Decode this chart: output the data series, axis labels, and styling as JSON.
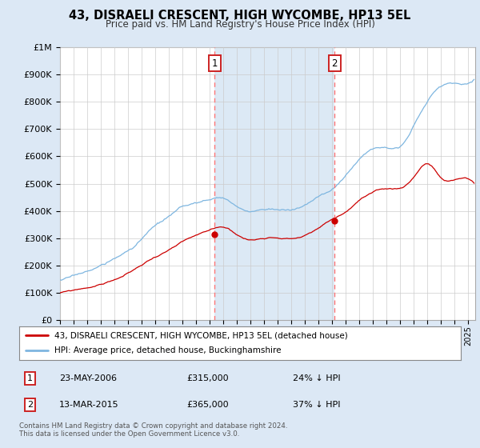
{
  "title": "43, DISRAELI CRESCENT, HIGH WYCOMBE, HP13 5EL",
  "subtitle": "Price paid vs. HM Land Registry's House Price Index (HPI)",
  "hpi_color": "#7eb6e0",
  "property_color": "#cc0000",
  "dashed_line_color": "#ff7777",
  "shade_color": "#dce9f5",
  "legend_property": "43, DISRAELI CRESCENT, HIGH WYCOMBE, HP13 5EL (detached house)",
  "legend_hpi": "HPI: Average price, detached house, Buckinghamshire",
  "sale1_year": 2006.37,
  "sale1_price": 315000,
  "sale1_label": "1",
  "sale1_date": "23-MAY-2006",
  "sale1_hpi_pct": "24% ↓ HPI",
  "sale2_year": 2015.17,
  "sale2_price": 365000,
  "sale2_label": "2",
  "sale2_date": "13-MAR-2015",
  "sale2_hpi_pct": "37% ↓ HPI",
  "footer": "Contains HM Land Registry data © Crown copyright and database right 2024.\nThis data is licensed under the Open Government Licence v3.0.",
  "ylim": [
    0,
    1000000
  ],
  "xlim_start": 1995.0,
  "xlim_end": 2025.5,
  "background_color": "#dce8f5",
  "plot_bg": "#ffffff"
}
